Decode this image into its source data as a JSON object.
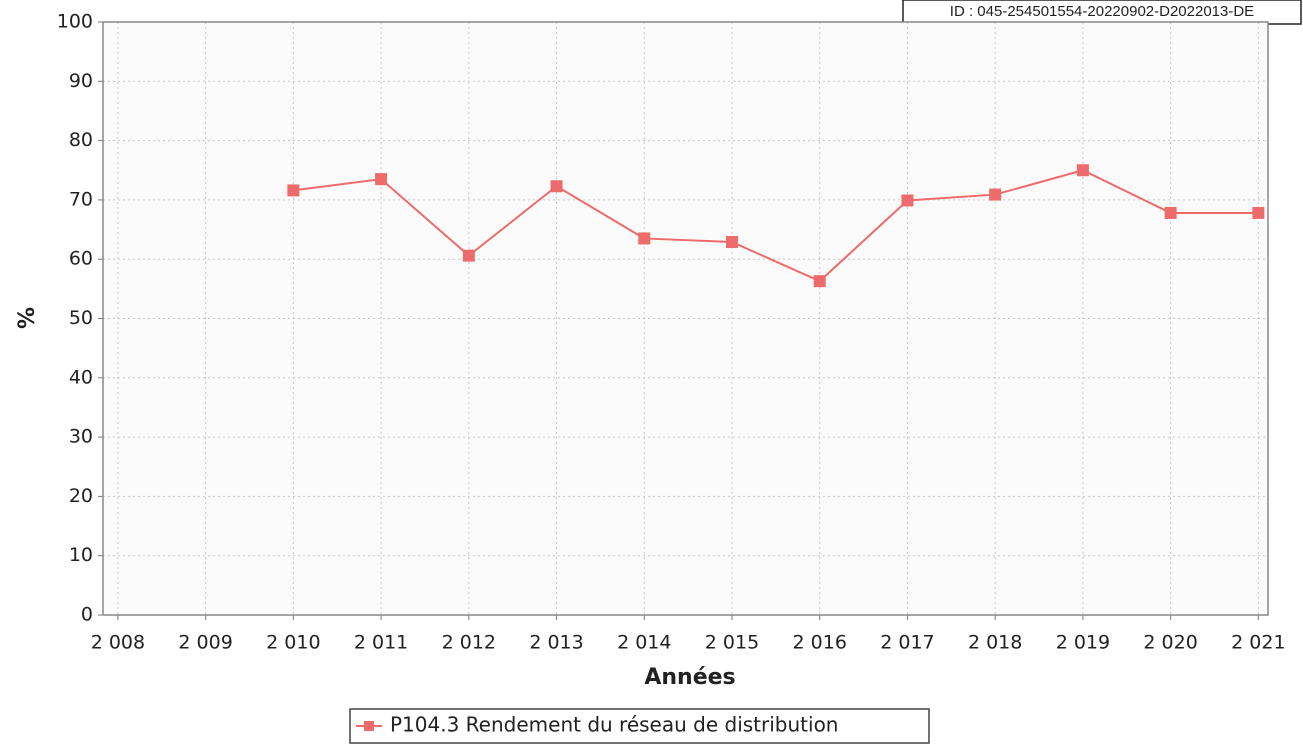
{
  "chart_data": {
    "type": "line",
    "stamp": "ID : 045-254501554-20220902-D2022013-DE",
    "x_label": "Années",
    "y_label": "%",
    "x": [
      2010,
      2011,
      2012,
      2013,
      2014,
      2015,
      2016,
      2017,
      2018,
      2019,
      2020,
      2021
    ],
    "series": [
      {
        "name": "P104.3 Rendement du réseau de distribution",
        "color": "#ee6b6b",
        "values": [
          71.6,
          73.5,
          60.6,
          72.3,
          63.5,
          62.9,
          56.3,
          69.9,
          70.9,
          75.0,
          67.8,
          67.8
        ]
      }
    ],
    "xlim": [
      2007.83,
      2021.11
    ],
    "xticks": [
      {
        "value": 2008,
        "label": "2 008"
      },
      {
        "value": 2009,
        "label": "2 009"
      },
      {
        "value": 2010,
        "label": "2 010"
      },
      {
        "value": 2011,
        "label": "2 011"
      },
      {
        "value": 2012,
        "label": "2 012"
      },
      {
        "value": 2013,
        "label": "2 013"
      },
      {
        "value": 2014,
        "label": "2 014"
      },
      {
        "value": 2015,
        "label": "2 015"
      },
      {
        "value": 2016,
        "label": "2 016"
      },
      {
        "value": 2017,
        "label": "2 017"
      },
      {
        "value": 2018,
        "label": "2 018"
      },
      {
        "value": 2019,
        "label": "2 019"
      },
      {
        "value": 2020,
        "label": "2 020"
      },
      {
        "value": 2021,
        "label": "2 021"
      }
    ],
    "ylim": [
      0,
      100
    ],
    "yticks": [
      0,
      10,
      20,
      30,
      40,
      50,
      60,
      70,
      80,
      90,
      100
    ],
    "grid": true,
    "legend": "bottom"
  }
}
